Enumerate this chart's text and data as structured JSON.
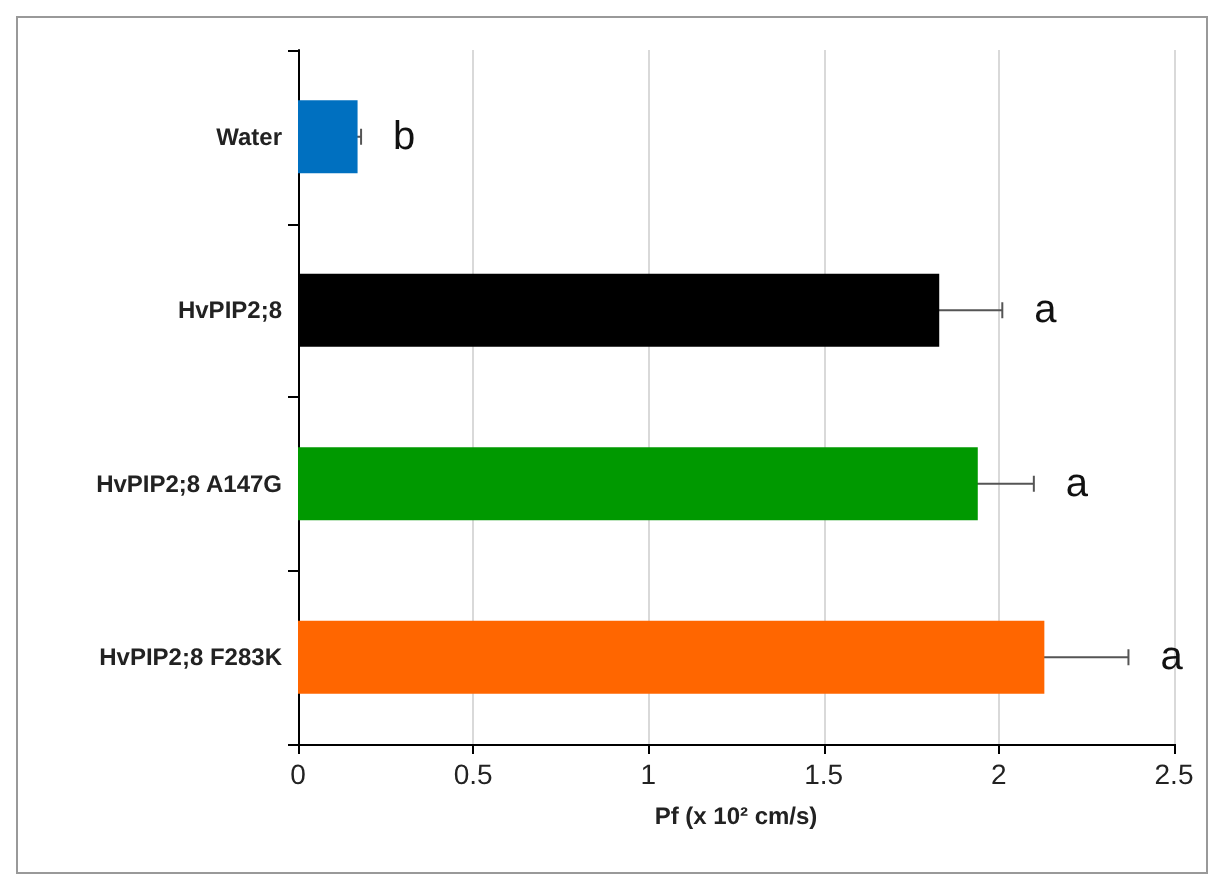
{
  "chart_data": {
    "type": "bar",
    "orientation": "horizontal",
    "xlabel": "Pf (x 10² cm/s)",
    "categories": [
      "Water",
      "HvPIP2;8",
      "HvPIP2;8 A147G",
      "HvPIP2;8 F283K"
    ],
    "values": [
      0.17,
      1.83,
      1.94,
      2.13
    ],
    "colors": [
      "#0070c0",
      "#000000",
      "#009900",
      "#ff6600"
    ],
    "errors": [
      0.01,
      0.18,
      0.16,
      0.24
    ],
    "xlim": [
      0,
      2.5
    ],
    "xticks": [
      0,
      0.5,
      1,
      1.5,
      2,
      2.5
    ],
    "grid": "x",
    "annotations": [
      "b",
      "a",
      "a",
      "a"
    ]
  }
}
